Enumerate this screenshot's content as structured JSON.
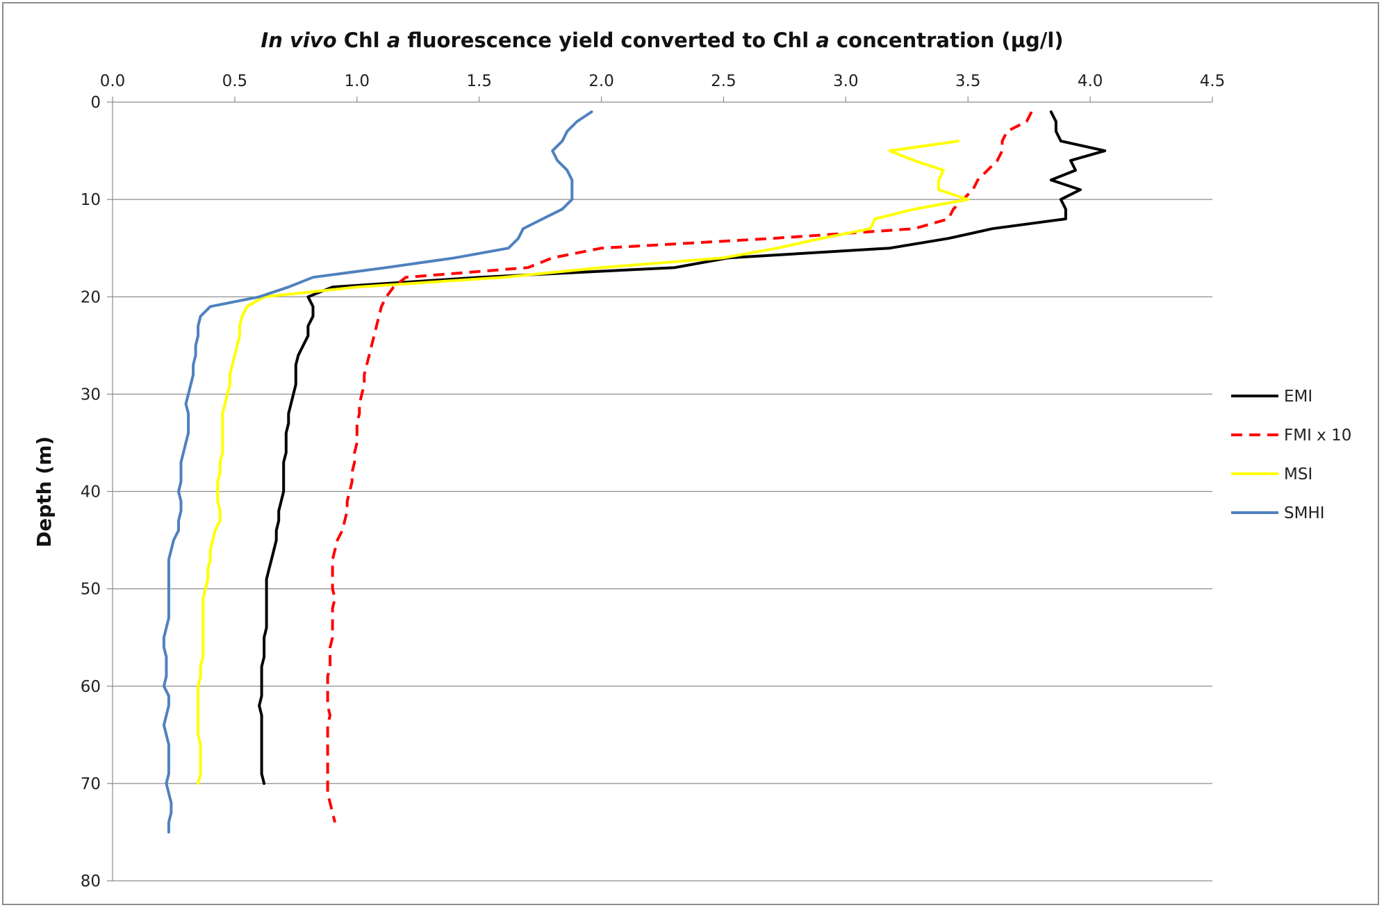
{
  "chart_data": {
    "type": "line",
    "title_parts": [
      {
        "text": "In vivo",
        "italic": true
      },
      {
        "text": " Chl ",
        "italic": false
      },
      {
        "text": "a",
        "italic": true
      },
      {
        "text": " fluorescence yield converted to Chl ",
        "italic": false
      },
      {
        "text": "a",
        "italic": true
      },
      {
        "text": " concentration (µg/l)",
        "italic": false
      }
    ],
    "ylabel": "Depth (m)",
    "xlim": [
      0,
      4.5
    ],
    "x_ticks": [
      "0.0",
      "0.5",
      "1.0",
      "1.5",
      "2.0",
      "2.5",
      "3.0",
      "3.5",
      "4.0",
      "4.5"
    ],
    "ylim": [
      0,
      80
    ],
    "y_inverted": true,
    "y_ticks": [
      "0",
      "10",
      "20",
      "30",
      "40",
      "50",
      "60",
      "70",
      "80"
    ],
    "x_axis_position": "top",
    "grid": "horizontal",
    "legend_position": "right",
    "series": [
      {
        "name": "EMI",
        "color": "#000000",
        "dash": "solid",
        "points": [
          [
            3.84,
            1
          ],
          [
            3.86,
            2
          ],
          [
            3.86,
            3
          ],
          [
            3.88,
            4
          ],
          [
            4.06,
            5
          ],
          [
            3.92,
            6
          ],
          [
            3.94,
            7
          ],
          [
            3.84,
            8
          ],
          [
            3.96,
            9
          ],
          [
            3.88,
            10
          ],
          [
            3.9,
            11
          ],
          [
            3.9,
            12
          ],
          [
            3.6,
            13
          ],
          [
            3.42,
            14
          ],
          [
            3.18,
            15
          ],
          [
            2.52,
            16
          ],
          [
            2.3,
            17
          ],
          [
            1.5,
            18
          ],
          [
            0.9,
            19
          ],
          [
            0.8,
            20
          ],
          [
            0.82,
            21
          ],
          [
            0.82,
            22
          ],
          [
            0.8,
            23
          ],
          [
            0.8,
            24
          ],
          [
            0.78,
            25
          ],
          [
            0.76,
            26
          ],
          [
            0.75,
            27
          ],
          [
            0.75,
            28
          ],
          [
            0.75,
            29
          ],
          [
            0.74,
            30
          ],
          [
            0.73,
            31
          ],
          [
            0.72,
            32
          ],
          [
            0.72,
            33
          ],
          [
            0.71,
            34
          ],
          [
            0.71,
            35
          ],
          [
            0.71,
            36
          ],
          [
            0.7,
            37
          ],
          [
            0.7,
            38
          ],
          [
            0.7,
            39
          ],
          [
            0.7,
            40
          ],
          [
            0.69,
            41
          ],
          [
            0.68,
            42
          ],
          [
            0.68,
            43
          ],
          [
            0.67,
            44
          ],
          [
            0.67,
            45
          ],
          [
            0.66,
            46
          ],
          [
            0.65,
            47
          ],
          [
            0.64,
            48
          ],
          [
            0.63,
            49
          ],
          [
            0.63,
            50
          ],
          [
            0.63,
            51
          ],
          [
            0.63,
            52
          ],
          [
            0.63,
            53
          ],
          [
            0.63,
            54
          ],
          [
            0.62,
            55
          ],
          [
            0.62,
            56
          ],
          [
            0.62,
            57
          ],
          [
            0.61,
            58
          ],
          [
            0.61,
            59
          ],
          [
            0.61,
            60
          ],
          [
            0.61,
            61
          ],
          [
            0.6,
            62
          ],
          [
            0.61,
            63
          ],
          [
            0.61,
            64
          ],
          [
            0.61,
            65
          ],
          [
            0.61,
            66
          ],
          [
            0.61,
            67
          ],
          [
            0.61,
            68
          ],
          [
            0.61,
            69
          ],
          [
            0.62,
            70
          ]
        ]
      },
      {
        "name": "FMI x 10",
        "color": "#ff0000",
        "dash": "dashed",
        "points": [
          [
            3.76,
            1
          ],
          [
            3.74,
            2
          ],
          [
            3.66,
            3
          ],
          [
            3.64,
            4
          ],
          [
            3.64,
            5
          ],
          [
            3.62,
            6
          ],
          [
            3.58,
            7
          ],
          [
            3.54,
            8
          ],
          [
            3.52,
            9
          ],
          [
            3.48,
            10
          ],
          [
            3.44,
            11
          ],
          [
            3.42,
            12
          ],
          [
            3.28,
            13
          ],
          [
            2.7,
            14
          ],
          [
            2.0,
            15
          ],
          [
            1.8,
            16
          ],
          [
            1.7,
            17
          ],
          [
            1.2,
            18
          ],
          [
            1.15,
            19
          ],
          [
            1.12,
            20
          ],
          [
            1.1,
            21
          ],
          [
            1.09,
            22
          ],
          [
            1.08,
            23
          ],
          [
            1.07,
            24
          ],
          [
            1.06,
            25
          ],
          [
            1.05,
            26
          ],
          [
            1.04,
            27
          ],
          [
            1.03,
            28
          ],
          [
            1.03,
            29
          ],
          [
            1.02,
            30
          ],
          [
            1.01,
            31
          ],
          [
            1.01,
            32
          ],
          [
            1.0,
            33
          ],
          [
            1.0,
            34
          ],
          [
            1.0,
            35
          ],
          [
            0.99,
            36
          ],
          [
            0.99,
            37
          ],
          [
            0.98,
            38
          ],
          [
            0.98,
            39
          ],
          [
            0.97,
            40
          ],
          [
            0.96,
            41
          ],
          [
            0.96,
            42
          ],
          [
            0.95,
            43
          ],
          [
            0.94,
            44
          ],
          [
            0.92,
            45
          ],
          [
            0.91,
            46
          ],
          [
            0.9,
            47
          ],
          [
            0.9,
            48
          ],
          [
            0.9,
            49
          ],
          [
            0.9,
            50
          ],
          [
            0.91,
            51
          ],
          [
            0.9,
            52
          ],
          [
            0.9,
            53
          ],
          [
            0.9,
            54
          ],
          [
            0.9,
            55
          ],
          [
            0.89,
            56
          ],
          [
            0.89,
            57
          ],
          [
            0.89,
            58
          ],
          [
            0.88,
            59
          ],
          [
            0.88,
            60
          ],
          [
            0.88,
            61
          ],
          [
            0.88,
            62
          ],
          [
            0.89,
            63
          ],
          [
            0.88,
            64
          ],
          [
            0.88,
            65
          ],
          [
            0.88,
            66
          ],
          [
            0.88,
            67
          ],
          [
            0.88,
            68
          ],
          [
            0.88,
            69
          ],
          [
            0.88,
            70
          ],
          [
            0.88,
            71
          ],
          [
            0.89,
            72
          ],
          [
            0.9,
            73
          ],
          [
            0.91,
            74
          ]
        ]
      },
      {
        "name": "MSI",
        "color": "#ffff00",
        "dash": "solid",
        "points": [
          [
            3.46,
            4
          ],
          [
            3.18,
            5
          ],
          [
            3.28,
            6
          ],
          [
            3.4,
            7
          ],
          [
            3.38,
            8
          ],
          [
            3.38,
            9
          ],
          [
            3.5,
            10
          ],
          [
            3.28,
            11
          ],
          [
            3.12,
            12
          ],
          [
            3.1,
            13
          ],
          [
            2.9,
            14
          ],
          [
            2.72,
            15
          ],
          [
            2.5,
            16
          ],
          [
            2.0,
            17
          ],
          [
            1.6,
            18
          ],
          [
            1.0,
            19
          ],
          [
            0.62,
            20
          ],
          [
            0.55,
            21
          ],
          [
            0.53,
            22
          ],
          [
            0.52,
            23
          ],
          [
            0.52,
            24
          ],
          [
            0.51,
            25
          ],
          [
            0.5,
            26
          ],
          [
            0.49,
            27
          ],
          [
            0.48,
            28
          ],
          [
            0.48,
            29
          ],
          [
            0.47,
            30
          ],
          [
            0.46,
            31
          ],
          [
            0.45,
            32
          ],
          [
            0.45,
            33
          ],
          [
            0.45,
            34
          ],
          [
            0.45,
            35
          ],
          [
            0.45,
            36
          ],
          [
            0.44,
            37
          ],
          [
            0.44,
            38
          ],
          [
            0.43,
            39
          ],
          [
            0.43,
            40
          ],
          [
            0.43,
            41
          ],
          [
            0.44,
            42
          ],
          [
            0.44,
            43
          ],
          [
            0.42,
            44
          ],
          [
            0.41,
            45
          ],
          [
            0.4,
            46
          ],
          [
            0.4,
            47
          ],
          [
            0.39,
            48
          ],
          [
            0.39,
            49
          ],
          [
            0.38,
            50
          ],
          [
            0.37,
            51
          ],
          [
            0.37,
            52
          ],
          [
            0.37,
            53
          ],
          [
            0.37,
            54
          ],
          [
            0.37,
            55
          ],
          [
            0.37,
            56
          ],
          [
            0.37,
            57
          ],
          [
            0.36,
            58
          ],
          [
            0.36,
            59
          ],
          [
            0.35,
            60
          ],
          [
            0.35,
            61
          ],
          [
            0.35,
            62
          ],
          [
            0.35,
            63
          ],
          [
            0.35,
            64
          ],
          [
            0.35,
            65
          ],
          [
            0.36,
            66
          ],
          [
            0.36,
            67
          ],
          [
            0.36,
            68
          ],
          [
            0.36,
            69
          ],
          [
            0.35,
            70
          ]
        ]
      },
      {
        "name": "SMHI",
        "color": "#4f81bd",
        "dash": "solid",
        "points": [
          [
            1.96,
            1
          ],
          [
            1.9,
            2
          ],
          [
            1.86,
            3
          ],
          [
            1.84,
            4
          ],
          [
            1.8,
            5
          ],
          [
            1.82,
            6
          ],
          [
            1.86,
            7
          ],
          [
            1.88,
            8
          ],
          [
            1.88,
            9
          ],
          [
            1.88,
            10
          ],
          [
            1.84,
            11
          ],
          [
            1.76,
            12
          ],
          [
            1.68,
            13
          ],
          [
            1.66,
            14
          ],
          [
            1.62,
            15
          ],
          [
            1.4,
            16
          ],
          [
            1.12,
            17
          ],
          [
            0.82,
            18
          ],
          [
            0.72,
            19
          ],
          [
            0.6,
            20
          ],
          [
            0.4,
            21
          ],
          [
            0.36,
            22
          ],
          [
            0.35,
            23
          ],
          [
            0.35,
            24
          ],
          [
            0.34,
            25
          ],
          [
            0.34,
            26
          ],
          [
            0.33,
            27
          ],
          [
            0.33,
            28
          ],
          [
            0.32,
            29
          ],
          [
            0.31,
            30
          ],
          [
            0.3,
            31
          ],
          [
            0.31,
            32
          ],
          [
            0.31,
            33
          ],
          [
            0.31,
            34
          ],
          [
            0.3,
            35
          ],
          [
            0.29,
            36
          ],
          [
            0.28,
            37
          ],
          [
            0.28,
            38
          ],
          [
            0.28,
            39
          ],
          [
            0.27,
            40
          ],
          [
            0.28,
            41
          ],
          [
            0.28,
            42
          ],
          [
            0.27,
            43
          ],
          [
            0.27,
            44
          ],
          [
            0.25,
            45
          ],
          [
            0.24,
            46
          ],
          [
            0.23,
            47
          ],
          [
            0.23,
            48
          ],
          [
            0.23,
            49
          ],
          [
            0.23,
            50
          ],
          [
            0.23,
            51
          ],
          [
            0.23,
            52
          ],
          [
            0.23,
            53
          ],
          [
            0.22,
            54
          ],
          [
            0.21,
            55
          ],
          [
            0.21,
            56
          ],
          [
            0.22,
            57
          ],
          [
            0.22,
            58
          ],
          [
            0.22,
            59
          ],
          [
            0.21,
            60
          ],
          [
            0.23,
            61
          ],
          [
            0.23,
            62
          ],
          [
            0.22,
            63
          ],
          [
            0.21,
            64
          ],
          [
            0.22,
            65
          ],
          [
            0.23,
            66
          ],
          [
            0.23,
            67
          ],
          [
            0.23,
            68
          ],
          [
            0.23,
            69
          ],
          [
            0.22,
            70
          ],
          [
            0.23,
            71
          ],
          [
            0.24,
            72
          ],
          [
            0.24,
            73
          ],
          [
            0.23,
            74
          ],
          [
            0.23,
            75
          ]
        ]
      }
    ]
  }
}
